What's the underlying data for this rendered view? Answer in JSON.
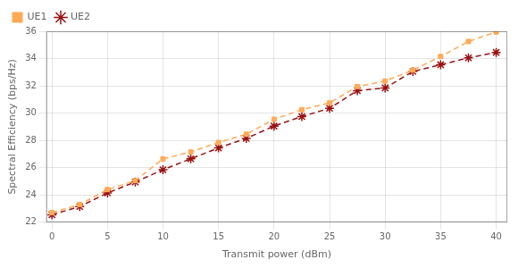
{
  "chart_data": {
    "type": "line",
    "x_label": "Transmit power (dBm)",
    "y_label": "Spectral Efficiency (bps/Hz)",
    "x": [
      0,
      2.5,
      5,
      7.5,
      10,
      12.5,
      15,
      17.5,
      20,
      22.5,
      25,
      27.5,
      30,
      32.5,
      35,
      37.5,
      40
    ],
    "series": [
      {
        "name": "UE1",
        "color": "#FFAA55",
        "marker": "square",
        "line_style": "dashed",
        "values": [
          22.7,
          23.3,
          24.4,
          25.05,
          26.65,
          27.15,
          27.85,
          28.45,
          29.55,
          30.25,
          30.75,
          31.95,
          32.35,
          33.15,
          34.15,
          35.25,
          35.95
        ]
      },
      {
        "name": "UE2",
        "color": "#9B1010",
        "marker": "star",
        "line_style": "dashed",
        "values": [
          22.55,
          23.15,
          24.15,
          24.95,
          25.85,
          26.65,
          27.45,
          28.15,
          29.05,
          29.75,
          30.35,
          31.65,
          31.85,
          33.05,
          33.55,
          34.05,
          34.45
        ]
      }
    ],
    "xlim": [
      -0.5,
      41
    ],
    "xticks": [
      0,
      5,
      10,
      15,
      20,
      25,
      30,
      35,
      40
    ],
    "ylim": [
      22,
      36
    ],
    "yticks": [
      22,
      24,
      26,
      28,
      30,
      32,
      34,
      36
    ],
    "grid": true,
    "legend": "upper left"
  }
}
